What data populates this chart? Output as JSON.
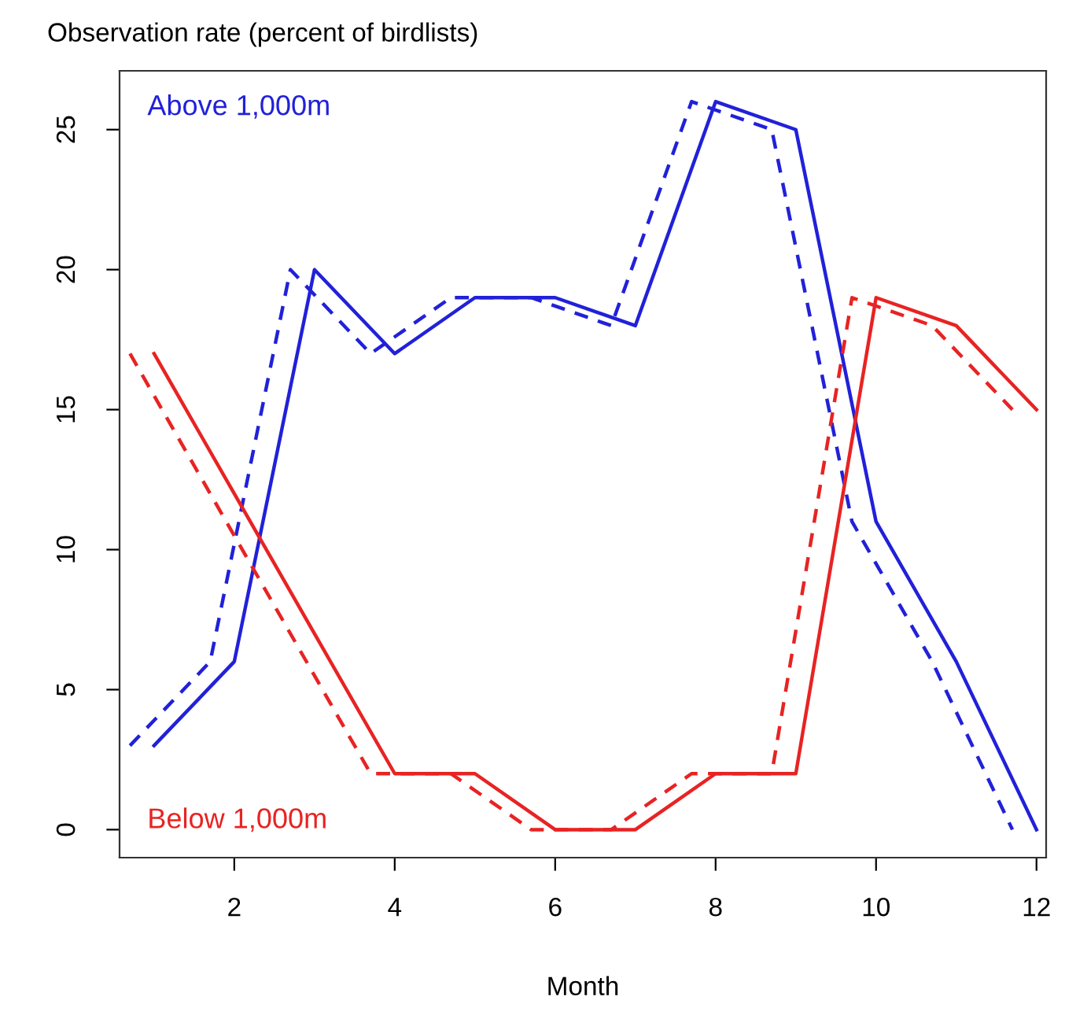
{
  "chart_data": {
    "type": "line",
    "title": "Observation rate (percent of birdlists)",
    "xlabel": "Month",
    "xlim": [
      0.57,
      12.12
    ],
    "xticks": [
      2,
      4,
      6,
      8,
      10,
      12
    ],
    "ylim": [
      -1.0,
      27.1
    ],
    "yticks": [
      0,
      5,
      10,
      15,
      20,
      25
    ],
    "grid": false,
    "legend": false,
    "marker": "none",
    "series": [
      {
        "name": "Above 1,000m",
        "color": "#2121d9",
        "line_style": "solid",
        "x": [
          1,
          2,
          3,
          4,
          5,
          6,
          7,
          8,
          9,
          10,
          11,
          12
        ],
        "values": [
          3,
          6,
          20,
          17,
          19,
          19,
          18,
          26,
          25,
          11,
          6,
          0
        ]
      },
      {
        "color": "#2121d9",
        "line_style": "dashed",
        "x": [
          0.7,
          1.7,
          2.7,
          3.7,
          4.7,
          5.7,
          6.7,
          7.7,
          8.7,
          9.7,
          10.7,
          11.7
        ],
        "values": [
          3,
          6,
          20,
          17,
          19,
          19,
          18,
          26,
          25,
          11,
          6,
          0
        ]
      },
      {
        "name": "Below 1,000m",
        "color": "#e82323",
        "line_style": "solid",
        "x": [
          1,
          2,
          3,
          4,
          5,
          6,
          7,
          8,
          9,
          10,
          11,
          12
        ],
        "values": [
          17,
          12,
          7,
          2,
          2,
          0,
          0,
          2,
          2,
          19,
          18,
          15
        ]
      },
      {
        "color": "#e82323",
        "line_style": "dashed",
        "x": [
          0.7,
          1.7,
          2.7,
          3.7,
          4.7,
          5.7,
          6.7,
          7.7,
          8.7,
          9.7,
          10.7,
          11.7
        ],
        "values": [
          17,
          12,
          7,
          2,
          2,
          0,
          0,
          2,
          2,
          19,
          18,
          15
        ]
      }
    ]
  }
}
